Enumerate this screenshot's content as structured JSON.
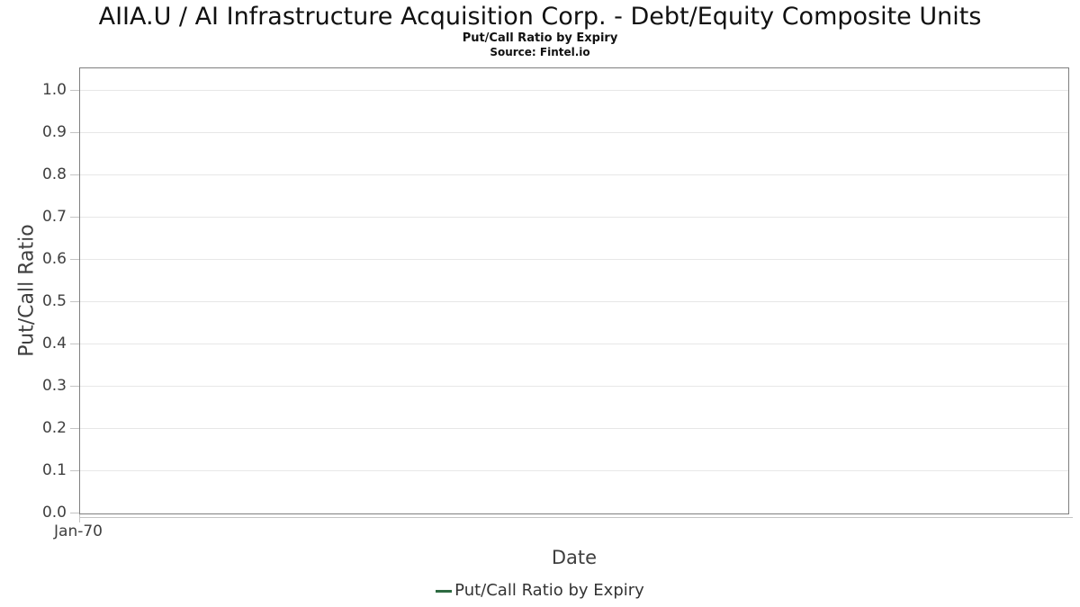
{
  "chart_data": {
    "type": "line",
    "title": "AIIA.U / AI Infrastructure Acquisition Corp. - Debt/Equity Composite Units",
    "subtitle": "Put/Call Ratio by Expiry",
    "source": "Source: Fintel.io",
    "xlabel": "Date",
    "ylabel": "Put/Call Ratio",
    "x_ticks": [
      "Jan-70"
    ],
    "y_ticks": [
      "0.0",
      "0.1",
      "0.2",
      "0.3",
      "0.4",
      "0.5",
      "0.6",
      "0.7",
      "0.8",
      "0.9",
      "1.0"
    ],
    "ylim": [
      0.0,
      1.05
    ],
    "grid": "horizontal",
    "legend_position": "bottom-center",
    "series": [
      {
        "name": "Put/Call Ratio by Expiry",
        "color": "#2d6a41",
        "x": [],
        "values": []
      }
    ]
  },
  "colors": {
    "title_text": "#111111",
    "axis_label_text": "#3f3f3f",
    "tick_label_text": "#3f3f3f",
    "legend_text": "#333333",
    "plot_border": "#7f7f7f",
    "gridline": "#e7e7e7",
    "tick_mark": "#c4c4c4",
    "series_green": "#2d6a41"
  }
}
